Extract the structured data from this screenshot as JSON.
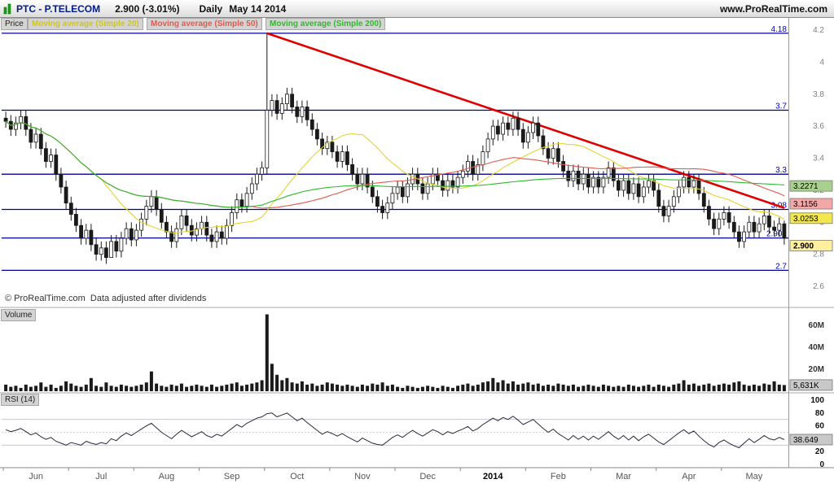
{
  "header": {
    "symbol": "PTC - P.TELECOM",
    "quote": "2.900 (-3.01%)",
    "timeframe": "Daily",
    "date": "May 14 2014",
    "site": "www.ProRealTime.com"
  },
  "panes": {
    "price_label": "Price",
    "volume_label": "Volume",
    "rsi_label": "RSI (14)",
    "copyright": "© ProRealTime.com  Data adjusted after dividends"
  },
  "legend": [
    {
      "label": "Moving average (Simple 20)",
      "color": "#cfc520"
    },
    {
      "label": "Moving average (Simple 50)",
      "color": "#e05a50"
    },
    {
      "label": "Moving average (Simple 200)",
      "color": "#2eb82e"
    }
  ],
  "colors": {
    "level_line": "#000099",
    "level_label": "#0000bb",
    "trendline": "#e00000",
    "candle": "#1a1a1a",
    "volume_bar": "#1a1a1a",
    "rsi_line": "#2a2a3a",
    "axis_tick": "#808080",
    "ma20": "#e3d535",
    "ma50": "#e05a50",
    "ma200": "#2eb82e",
    "last_tag_bg": "#ffef9e",
    "gray_tag_bg": "#c9c9c9"
  },
  "chart_data": [
    {
      "type": "candlestick",
      "title": "Price",
      "symbol": "PTC - P.TELECOM",
      "timeframe": "Daily",
      "months": [
        "Jun",
        "Jul",
        "Aug",
        "Sep",
        "Oct",
        "Nov",
        "Dec",
        "2014",
        "Feb",
        "Mar",
        "Apr",
        "May"
      ],
      "bars_per_month": 13,
      "open_rule": "previous_close",
      "first_open": 3.65,
      "ylim": [
        2.55,
        4.25
      ],
      "y_ticks": [
        4.2,
        4,
        3.8,
        3.6,
        3.4,
        3.2,
        3,
        2.8,
        2.6
      ],
      "levels": [
        4.18,
        3.7,
        3.3,
        3.08,
        2.902,
        2.7
      ],
      "last_price_tag": "2.900",
      "ma_tags": [
        {
          "label": "3.2271",
          "value": 3.2271,
          "bg": "#a9d18e"
        },
        {
          "label": "3.1156",
          "value": 3.1156,
          "bg": "#f4a7a7"
        },
        {
          "label": "3.0253",
          "value": 3.0253,
          "bg": "#f3e74f"
        }
      ],
      "moving_averages": [
        {
          "period": 20
        },
        {
          "period": 50
        },
        {
          "period": 200
        }
      ],
      "trendline": {
        "from_bar": 52,
        "from_value": 4.18,
        "to_bar": 155,
        "to_value": 3.09
      },
      "closes": [
        3.63,
        3.58,
        3.62,
        3.66,
        3.58,
        3.5,
        3.55,
        3.46,
        3.38,
        3.42,
        3.3,
        3.22,
        3.12,
        3.05,
        2.98,
        2.9,
        2.95,
        2.86,
        2.8,
        2.84,
        2.78,
        2.88,
        2.82,
        2.9,
        2.96,
        2.89,
        2.95,
        3.02,
        3.1,
        3.16,
        3.08,
        3.0,
        2.94,
        2.88,
        2.96,
        3.04,
        2.98,
        2.92,
        2.96,
        3.0,
        2.92,
        2.88,
        2.94,
        2.9,
        2.98,
        3.06,
        3.14,
        3.1,
        3.18,
        3.24,
        3.3,
        3.34,
        3.7,
        3.76,
        3.68,
        3.74,
        3.8,
        3.72,
        3.66,
        3.72,
        3.64,
        3.58,
        3.52,
        3.46,
        3.5,
        3.44,
        3.38,
        3.44,
        3.36,
        3.3,
        3.24,
        3.3,
        3.22,
        3.16,
        3.1,
        3.06,
        3.12,
        3.18,
        3.22,
        3.16,
        3.24,
        3.3,
        3.24,
        3.18,
        3.24,
        3.3,
        3.26,
        3.2,
        3.26,
        3.22,
        3.28,
        3.32,
        3.38,
        3.3,
        3.36,
        3.44,
        3.52,
        3.6,
        3.55,
        3.62,
        3.58,
        3.65,
        3.58,
        3.5,
        3.56,
        3.62,
        3.54,
        3.46,
        3.4,
        3.46,
        3.38,
        3.32,
        3.26,
        3.32,
        3.24,
        3.3,
        3.22,
        3.28,
        3.22,
        3.28,
        3.34,
        3.26,
        3.2,
        3.26,
        3.18,
        3.24,
        3.16,
        3.22,
        3.26,
        3.2,
        3.1,
        3.04,
        3.1,
        3.16,
        3.22,
        3.28,
        3.22,
        3.26,
        3.18,
        3.1,
        3.02,
        2.96,
        3.02,
        3.06,
        3.0,
        2.94,
        2.88,
        2.94,
        3.0,
        2.94,
        2.99,
        3.04,
        2.97,
        2.95,
        2.99,
        2.9
      ],
      "highs": [
        3.69,
        3.67,
        3.66,
        3.7,
        3.7,
        3.62,
        3.59,
        3.59,
        3.5,
        3.46,
        3.46,
        3.34,
        3.26,
        3.16,
        3.09,
        3.02,
        2.99,
        2.99,
        2.9,
        2.88,
        2.88,
        2.92,
        2.92,
        2.94,
        3.0,
        3.0,
        2.99,
        3.06,
        3.14,
        3.2,
        3.2,
        3.12,
        3.04,
        2.98,
        3.0,
        3.08,
        3.08,
        3.02,
        3.0,
        3.04,
        3.04,
        2.96,
        2.98,
        2.98,
        3.02,
        3.1,
        3.18,
        3.18,
        3.22,
        3.28,
        3.34,
        3.38,
        4.18,
        3.8,
        3.8,
        3.78,
        3.84,
        3.84,
        3.76,
        3.76,
        3.76,
        3.68,
        3.62,
        3.56,
        3.54,
        3.54,
        3.48,
        3.48,
        3.48,
        3.4,
        3.34,
        3.34,
        3.34,
        3.26,
        3.2,
        3.14,
        3.16,
        3.22,
        3.26,
        3.26,
        3.28,
        3.34,
        3.34,
        3.28,
        3.28,
        3.34,
        3.34,
        3.3,
        3.3,
        3.3,
        3.32,
        3.36,
        3.42,
        3.42,
        3.4,
        3.48,
        3.56,
        3.64,
        3.64,
        3.66,
        3.66,
        3.69,
        3.69,
        3.62,
        3.6,
        3.66,
        3.66,
        3.58,
        3.5,
        3.5,
        3.5,
        3.42,
        3.36,
        3.36,
        3.36,
        3.34,
        3.34,
        3.32,
        3.32,
        3.32,
        3.38,
        3.38,
        3.3,
        3.3,
        3.3,
        3.28,
        3.28,
        3.26,
        3.3,
        3.3,
        3.24,
        3.14,
        3.14,
        3.2,
        3.26,
        3.32,
        3.32,
        3.3,
        3.3,
        3.22,
        3.14,
        3.06,
        3.06,
        3.1,
        3.1,
        3.04,
        2.98,
        2.98,
        3.04,
        3.04,
        3.03,
        3.08,
        3.08,
        3.01,
        3.03,
        3.01
      ],
      "lows": [
        3.59,
        3.54,
        3.54,
        3.58,
        3.54,
        3.46,
        3.46,
        3.42,
        3.34,
        3.34,
        3.26,
        3.18,
        3.08,
        3.01,
        2.94,
        2.86,
        2.86,
        2.82,
        2.76,
        2.76,
        2.74,
        2.8,
        2.78,
        2.78,
        2.86,
        2.85,
        2.85,
        2.91,
        2.98,
        3.06,
        3.04,
        2.96,
        2.9,
        2.84,
        2.84,
        2.92,
        2.94,
        2.88,
        2.88,
        2.92,
        2.88,
        2.84,
        2.84,
        2.86,
        2.86,
        2.94,
        3.02,
        3.06,
        3.06,
        3.14,
        3.2,
        3.26,
        3.3,
        3.66,
        3.64,
        3.64,
        3.7,
        3.68,
        3.62,
        3.62,
        3.6,
        3.54,
        3.48,
        3.42,
        3.42,
        3.4,
        3.34,
        3.34,
        3.32,
        3.26,
        3.2,
        3.2,
        3.18,
        3.12,
        3.06,
        3.02,
        3.02,
        3.08,
        3.14,
        3.12,
        3.12,
        3.2,
        3.2,
        3.14,
        3.14,
        3.2,
        3.22,
        3.16,
        3.16,
        3.18,
        3.18,
        3.24,
        3.28,
        3.26,
        3.26,
        3.32,
        3.4,
        3.48,
        3.51,
        3.51,
        3.54,
        3.54,
        3.54,
        3.46,
        3.46,
        3.52,
        3.5,
        3.42,
        3.36,
        3.36,
        3.34,
        3.28,
        3.22,
        3.22,
        3.2,
        3.2,
        3.18,
        3.18,
        3.18,
        3.18,
        3.24,
        3.22,
        3.16,
        3.16,
        3.14,
        3.14,
        3.12,
        3.12,
        3.18,
        3.16,
        3.06,
        3.0,
        3.0,
        3.06,
        3.12,
        3.18,
        3.18,
        3.18,
        3.14,
        3.06,
        2.98,
        2.92,
        2.92,
        2.98,
        2.96,
        2.9,
        2.84,
        2.84,
        2.9,
        2.9,
        2.9,
        2.95,
        2.93,
        2.91,
        2.91,
        2.86
      ]
    },
    {
      "type": "bar",
      "title": "Volume",
      "unit": "millions",
      "ylim": [
        0,
        75
      ],
      "y_ticks": [
        "60M",
        "40M",
        "20M"
      ],
      "y_tick_values": [
        60,
        40,
        20
      ],
      "last_tag": "5,631K",
      "values": [
        6,
        4,
        5,
        3,
        6,
        4,
        5,
        8,
        4,
        6,
        3,
        5,
        9,
        7,
        5,
        4,
        6,
        12,
        5,
        4,
        8,
        5,
        4,
        6,
        5,
        4,
        5,
        6,
        8,
        18,
        7,
        5,
        4,
        6,
        5,
        7,
        4,
        5,
        6,
        5,
        4,
        6,
        4,
        5,
        6,
        7,
        8,
        5,
        6,
        7,
        8,
        10,
        70,
        25,
        15,
        10,
        12,
        8,
        7,
        9,
        6,
        7,
        5,
        6,
        8,
        7,
        6,
        5,
        6,
        5,
        4,
        6,
        5,
        7,
        6,
        8,
        5,
        6,
        4,
        3,
        5,
        4,
        3,
        4,
        5,
        4,
        3,
        5,
        4,
        3,
        5,
        6,
        7,
        5,
        6,
        8,
        9,
        12,
        8,
        10,
        7,
        9,
        6,
        7,
        8,
        6,
        7,
        5,
        6,
        5,
        7,
        6,
        5,
        6,
        4,
        5,
        6,
        5,
        4,
        6,
        5,
        4,
        5,
        4,
        6,
        5,
        4,
        5,
        6,
        4,
        6,
        5,
        4,
        6,
        7,
        10,
        6,
        7,
        5,
        6,
        7,
        5,
        6,
        7,
        6,
        8,
        9,
        6,
        5,
        6,
        5,
        7,
        6,
        9,
        6,
        5.631
      ]
    },
    {
      "type": "line",
      "title": "RSI (14)",
      "ylim": [
        0,
        100
      ],
      "y_ticks": [
        100,
        80,
        60,
        40,
        20,
        0
      ],
      "guides": [
        70,
        50,
        30
      ],
      "last_tag": "38.649",
      "values": [
        54,
        51,
        53,
        56,
        51,
        46,
        49,
        43,
        39,
        42,
        36,
        33,
        30,
        34,
        32,
        30,
        36,
        33,
        31,
        34,
        32,
        40,
        37,
        44,
        49,
        45,
        50,
        55,
        60,
        64,
        57,
        50,
        45,
        40,
        47,
        53,
        48,
        43,
        47,
        51,
        45,
        42,
        47,
        44,
        50,
        56,
        62,
        58,
        64,
        68,
        72,
        74,
        79,
        80,
        74,
        77,
        80,
        74,
        68,
        72,
        65,
        59,
        53,
        47,
        51,
        48,
        44,
        48,
        43,
        39,
        35,
        41,
        37,
        33,
        31,
        30,
        36,
        42,
        46,
        42,
        48,
        53,
        48,
        44,
        49,
        54,
        51,
        46,
        51,
        48,
        52,
        55,
        59,
        52,
        56,
        62,
        67,
        72,
        68,
        73,
        70,
        75,
        69,
        62,
        66,
        70,
        63,
        56,
        50,
        55,
        48,
        43,
        38,
        45,
        39,
        44,
        38,
        44,
        39,
        45,
        51,
        44,
        39,
        45,
        38,
        44,
        37,
        43,
        47,
        41,
        35,
        31,
        37,
        43,
        49,
        54,
        48,
        52,
        44,
        37,
        31,
        27,
        34,
        38,
        33,
        29,
        26,
        33,
        40,
        34,
        39,
        45,
        40,
        38,
        42,
        38.649
      ]
    }
  ]
}
